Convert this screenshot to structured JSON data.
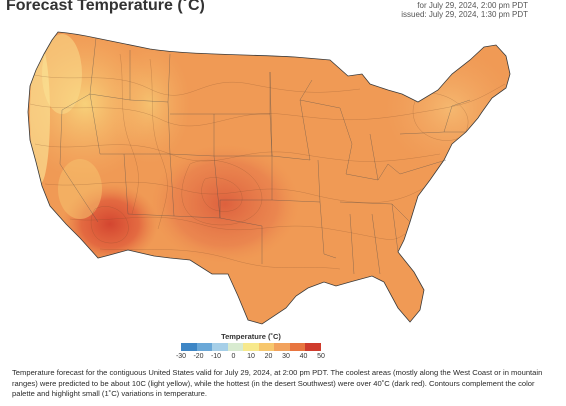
{
  "header": {
    "title": "Forecast Temperature (˚C)",
    "valid": "for July 29, 2024, 2:00 pm PDT",
    "issued": "issued: July 29, 2024, 1:30 pm PDT"
  },
  "map": {
    "region": "contiguous United States",
    "variable": "temperature",
    "units": "˚C",
    "regions": [
      {
        "name": "west-coast-mountains",
        "temp": 10,
        "color": "#fbe89a"
      },
      {
        "name": "pacific-northwest",
        "temp": 15,
        "color": "#f9c873"
      },
      {
        "name": "rockies",
        "temp": 18,
        "color": "#f6b66a"
      },
      {
        "name": "great-basin",
        "temp": 25,
        "color": "#f2a25d"
      },
      {
        "name": "northern-plains",
        "temp": 28,
        "color": "#f09a55"
      },
      {
        "name": "great-lakes-northeast",
        "temp": 26,
        "color": "#f2a563"
      },
      {
        "name": "southeast",
        "temp": 31,
        "color": "#ed9050"
      },
      {
        "name": "southern-plains",
        "temp": 36,
        "color": "#e57645"
      },
      {
        "name": "desert-southwest",
        "temp": 42,
        "color": "#d64b35"
      }
    ]
  },
  "legend": {
    "title": "Temperature (˚C)",
    "ticks": [
      "-30",
      "-20",
      "-10",
      "0",
      "10",
      "20",
      "30",
      "40",
      "50"
    ],
    "colors": [
      "#3d86c6",
      "#6aa8d8",
      "#a6cfe8",
      "#d8ebd0",
      "#f7e98c",
      "#f7c76d",
      "#f2a25d",
      "#e8753f",
      "#cf3b2c"
    ]
  },
  "caption": "Temperature forecast for the contiguous United States valid for July 29, 2024, at 2:00 pm PDT. The coolest areas (mostly along the West Coast or in mountain ranges) were predicted to be about 10C (light yellow), while the hottest (in the desert Southwest) were over 40˚C (dark red). Contours complement the color palette and highlight small (1˚C) variations in temperature."
}
